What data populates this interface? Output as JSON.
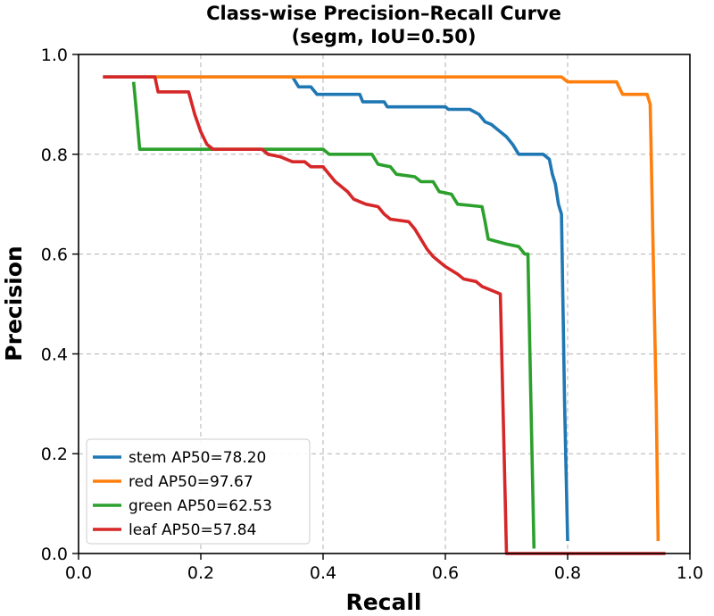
{
  "chart_data": {
    "type": "line",
    "title_line1": "Class-wise Precision–Recall Curve",
    "title_line2": "(segm, IoU=0.50)",
    "xlabel": "Recall",
    "ylabel": "Precision",
    "xlim": [
      0.0,
      1.0
    ],
    "ylim": [
      0.0,
      1.0
    ],
    "xticks": [
      "0.0",
      "0.2",
      "0.4",
      "0.6",
      "0.8",
      "1.0"
    ],
    "yticks": [
      "0.0",
      "0.2",
      "0.4",
      "0.6",
      "0.8",
      "1.0"
    ],
    "grid": true,
    "legend_position": "lower-left",
    "series": [
      {
        "name": "stem AP50=78.20",
        "color": "#1f77b4",
        "points": [
          [
            0.04,
            0.955
          ],
          [
            0.35,
            0.955
          ],
          [
            0.36,
            0.935
          ],
          [
            0.38,
            0.935
          ],
          [
            0.39,
            0.92
          ],
          [
            0.46,
            0.92
          ],
          [
            0.465,
            0.905
          ],
          [
            0.5,
            0.905
          ],
          [
            0.505,
            0.895
          ],
          [
            0.6,
            0.895
          ],
          [
            0.605,
            0.89
          ],
          [
            0.64,
            0.89
          ],
          [
            0.655,
            0.88
          ],
          [
            0.665,
            0.865
          ],
          [
            0.675,
            0.86
          ],
          [
            0.69,
            0.845
          ],
          [
            0.7,
            0.835
          ],
          [
            0.71,
            0.82
          ],
          [
            0.72,
            0.8
          ],
          [
            0.76,
            0.8
          ],
          [
            0.77,
            0.79
          ],
          [
            0.775,
            0.76
          ],
          [
            0.78,
            0.74
          ],
          [
            0.785,
            0.7
          ],
          [
            0.79,
            0.68
          ],
          [
            0.795,
            0.3
          ],
          [
            0.8,
            0.025
          ]
        ]
      },
      {
        "name": "red AP50=97.67",
        "color": "#ff7f0e",
        "points": [
          [
            0.04,
            0.955
          ],
          [
            0.79,
            0.955
          ],
          [
            0.8,
            0.945
          ],
          [
            0.88,
            0.945
          ],
          [
            0.89,
            0.92
          ],
          [
            0.93,
            0.92
          ],
          [
            0.935,
            0.9
          ],
          [
            0.94,
            0.6
          ],
          [
            0.945,
            0.3
          ],
          [
            0.948,
            0.025
          ]
        ]
      },
      {
        "name": "green AP50=62.53",
        "color": "#2ca02c",
        "points": [
          [
            0.09,
            0.945
          ],
          [
            0.095,
            0.88
          ],
          [
            0.1,
            0.81
          ],
          [
            0.4,
            0.81
          ],
          [
            0.41,
            0.8
          ],
          [
            0.48,
            0.8
          ],
          [
            0.49,
            0.78
          ],
          [
            0.51,
            0.775
          ],
          [
            0.52,
            0.76
          ],
          [
            0.55,
            0.755
          ],
          [
            0.56,
            0.745
          ],
          [
            0.58,
            0.745
          ],
          [
            0.59,
            0.725
          ],
          [
            0.61,
            0.72
          ],
          [
            0.62,
            0.7
          ],
          [
            0.66,
            0.695
          ],
          [
            0.665,
            0.665
          ],
          [
            0.67,
            0.63
          ],
          [
            0.685,
            0.625
          ],
          [
            0.7,
            0.62
          ],
          [
            0.72,
            0.615
          ],
          [
            0.73,
            0.6
          ],
          [
            0.735,
            0.6
          ],
          [
            0.74,
            0.3
          ],
          [
            0.745,
            0.01
          ]
        ]
      },
      {
        "name": "leaf AP50=57.84",
        "color": "#d62728",
        "points": [
          [
            0.04,
            0.955
          ],
          [
            0.125,
            0.955
          ],
          [
            0.13,
            0.925
          ],
          [
            0.18,
            0.925
          ],
          [
            0.19,
            0.88
          ],
          [
            0.2,
            0.845
          ],
          [
            0.21,
            0.82
          ],
          [
            0.22,
            0.81
          ],
          [
            0.3,
            0.81
          ],
          [
            0.31,
            0.8
          ],
          [
            0.33,
            0.795
          ],
          [
            0.34,
            0.79
          ],
          [
            0.35,
            0.785
          ],
          [
            0.37,
            0.785
          ],
          [
            0.38,
            0.775
          ],
          [
            0.4,
            0.775
          ],
          [
            0.41,
            0.76
          ],
          [
            0.42,
            0.745
          ],
          [
            0.43,
            0.735
          ],
          [
            0.44,
            0.725
          ],
          [
            0.45,
            0.71
          ],
          [
            0.46,
            0.705
          ],
          [
            0.47,
            0.7
          ],
          [
            0.49,
            0.695
          ],
          [
            0.5,
            0.68
          ],
          [
            0.51,
            0.67
          ],
          [
            0.54,
            0.665
          ],
          [
            0.55,
            0.65
          ],
          [
            0.56,
            0.63
          ],
          [
            0.57,
            0.61
          ],
          [
            0.58,
            0.595
          ],
          [
            0.59,
            0.585
          ],
          [
            0.6,
            0.575
          ],
          [
            0.62,
            0.56
          ],
          [
            0.63,
            0.55
          ],
          [
            0.65,
            0.545
          ],
          [
            0.66,
            0.535
          ],
          [
            0.67,
            0.53
          ],
          [
            0.68,
            0.525
          ],
          [
            0.69,
            0.52
          ],
          [
            0.7,
            0.0
          ],
          [
            0.96,
            0.0
          ]
        ]
      }
    ]
  }
}
